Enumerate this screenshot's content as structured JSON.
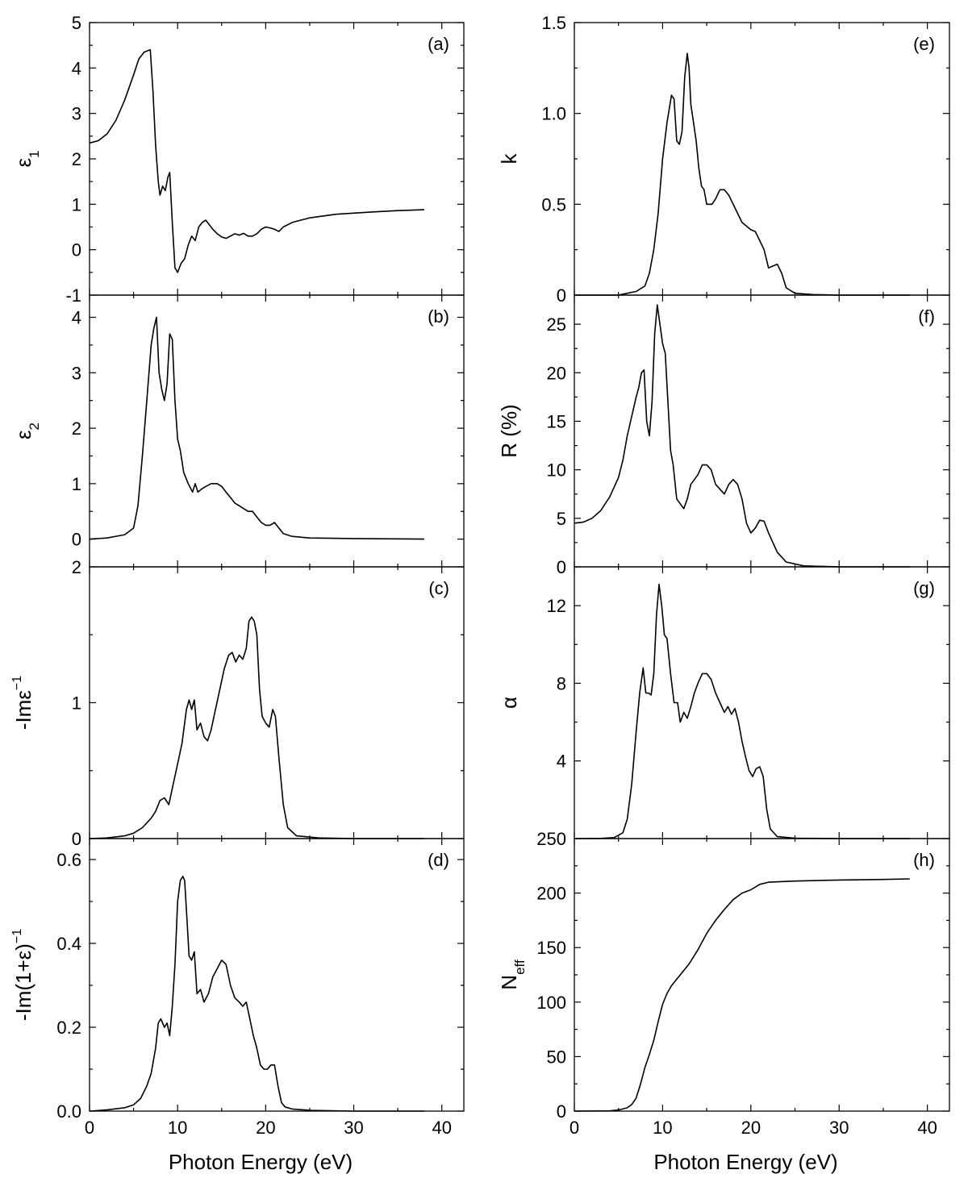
{
  "chart_data": [
    {
      "id": "a",
      "type": "line",
      "tag": "(a)",
      "ylabel_main": "ε",
      "ylabel_sub": "1",
      "ylabel_sup": "",
      "xlim": [
        0,
        42.5
      ],
      "ylim": [
        -1,
        5
      ],
      "yticks": [
        -1,
        0,
        1,
        2,
        3,
        4,
        5
      ],
      "yticklabels": [
        "-1",
        "0",
        "1",
        "2",
        "3",
        "4",
        "5"
      ],
      "xticks": [
        0,
        10,
        20,
        30,
        40
      ],
      "xticklabels": [],
      "xlabel": "",
      "series": [
        {
          "x": [
            0,
            1,
            2,
            3,
            4,
            5,
            5.6,
            6.2,
            6.6,
            6.9,
            7.2,
            7.5,
            7.8,
            8.0,
            8.3,
            8.6,
            8.9,
            9.1,
            9.4,
            9.7,
            10.0,
            10.4,
            10.8,
            11.2,
            11.6,
            12.0,
            12.4,
            12.8,
            13.2,
            13.6,
            14.0,
            14.5,
            15.0,
            15.5,
            16.0,
            16.5,
            17.0,
            17.5,
            18.0,
            18.5,
            19.0,
            19.5,
            20.0,
            20.5,
            21.0,
            21.5,
            22.0,
            23.0,
            25.0,
            28.0,
            32.0,
            35.0,
            38.0
          ],
          "y": [
            2.35,
            2.4,
            2.55,
            2.85,
            3.3,
            3.85,
            4.2,
            4.35,
            4.38,
            4.4,
            3.5,
            2.3,
            1.5,
            1.2,
            1.4,
            1.3,
            1.6,
            1.7,
            0.6,
            -0.4,
            -0.5,
            -0.3,
            -0.2,
            0.1,
            0.3,
            0.2,
            0.5,
            0.6,
            0.65,
            0.55,
            0.45,
            0.35,
            0.28,
            0.25,
            0.3,
            0.35,
            0.32,
            0.36,
            0.3,
            0.3,
            0.35,
            0.45,
            0.5,
            0.48,
            0.45,
            0.4,
            0.5,
            0.6,
            0.7,
            0.78,
            0.83,
            0.86,
            0.88
          ]
        }
      ]
    },
    {
      "id": "b",
      "type": "line",
      "tag": "(b)",
      "ylabel_main": "ε",
      "ylabel_sub": "2",
      "ylabel_sup": "",
      "xlim": [
        0,
        42.5
      ],
      "ylim": [
        -0.5,
        4.4
      ],
      "yticks": [
        0,
        1,
        2,
        3,
        4
      ],
      "yticklabels": [
        "0",
        "1",
        "2",
        "3",
        "4"
      ],
      "xticks": [
        0,
        10,
        20,
        30,
        40
      ],
      "xticklabels": [],
      "xlabel": "",
      "series": [
        {
          "x": [
            0,
            2,
            4,
            5,
            5.5,
            6.0,
            6.5,
            7.0,
            7.3,
            7.6,
            7.9,
            8.2,
            8.5,
            8.8,
            9.1,
            9.4,
            9.7,
            10.0,
            10.3,
            10.7,
            11.2,
            11.7,
            12.0,
            12.3,
            12.7,
            13.2,
            13.8,
            14.5,
            15.0,
            15.5,
            16.0,
            16.5,
            17.0,
            17.5,
            18.0,
            18.5,
            19.0,
            19.5,
            20.0,
            20.5,
            21.0,
            21.5,
            22.0,
            23.0,
            25.0,
            30.0,
            38.0
          ],
          "y": [
            0,
            0.02,
            0.08,
            0.2,
            0.6,
            1.5,
            2.5,
            3.5,
            3.8,
            4.0,
            3.0,
            2.7,
            2.5,
            2.8,
            3.7,
            3.6,
            2.5,
            1.8,
            1.6,
            1.2,
            1.0,
            0.85,
            1.0,
            0.85,
            0.9,
            0.95,
            1.0,
            1.0,
            0.95,
            0.85,
            0.75,
            0.65,
            0.6,
            0.55,
            0.5,
            0.5,
            0.4,
            0.3,
            0.25,
            0.25,
            0.3,
            0.2,
            0.1,
            0.05,
            0.02,
            0.01,
            0.0
          ]
        }
      ]
    },
    {
      "id": "c",
      "type": "line",
      "tag": "(c)",
      "ylabel_main": "-Imε",
      "ylabel_sub": "",
      "ylabel_sup": "−1",
      "xlim": [
        0,
        42.5
      ],
      "ylim": [
        0,
        2
      ],
      "yticks": [
        0,
        1,
        2
      ],
      "yticklabels": [
        "0",
        "1",
        "2"
      ],
      "xticks": [
        0,
        10,
        20,
        30,
        40
      ],
      "xticklabels": [],
      "xlabel": "",
      "series": [
        {
          "x": [
            0,
            2,
            4,
            5,
            6,
            7,
            7.5,
            8.0,
            8.5,
            9.0,
            9.5,
            10.0,
            10.5,
            11.0,
            11.3,
            11.6,
            11.9,
            12.2,
            12.6,
            13.0,
            13.4,
            13.8,
            14.3,
            14.8,
            15.3,
            15.8,
            16.2,
            16.6,
            17.0,
            17.4,
            17.8,
            18.1,
            18.4,
            18.7,
            19.0,
            19.3,
            19.6,
            20.0,
            20.4,
            20.8,
            21.1,
            21.5,
            22.0,
            22.5,
            23.5,
            26.0,
            30.0,
            38.0
          ],
          "y": [
            0,
            0.005,
            0.02,
            0.04,
            0.08,
            0.15,
            0.2,
            0.28,
            0.3,
            0.25,
            0.4,
            0.55,
            0.7,
            0.95,
            1.02,
            0.95,
            1.02,
            0.8,
            0.85,
            0.75,
            0.72,
            0.8,
            0.95,
            1.1,
            1.25,
            1.35,
            1.37,
            1.3,
            1.35,
            1.32,
            1.4,
            1.6,
            1.63,
            1.6,
            1.5,
            1.1,
            0.9,
            0.85,
            0.82,
            0.95,
            0.9,
            0.6,
            0.25,
            0.08,
            0.02,
            0.005,
            0.0,
            0.0
          ]
        }
      ]
    },
    {
      "id": "d",
      "type": "line",
      "tag": "(d)",
      "ylabel_main": "-Im(1+ε)",
      "ylabel_sub": "",
      "ylabel_sup": "−1",
      "xlim": [
        0,
        42.5
      ],
      "ylim": [
        0,
        0.65
      ],
      "yticks": [
        0,
        0.2,
        0.4,
        0.6
      ],
      "yticklabels": [
        "0.0",
        "0.2",
        "0.4",
        "0.6"
      ],
      "xticks": [
        0,
        10,
        20,
        30,
        40
      ],
      "xticklabels": [
        "0",
        "10",
        "20",
        "30",
        "40"
      ],
      "xlabel": "Photon Energy (eV)",
      "series": [
        {
          "x": [
            0,
            2,
            4,
            5,
            5.8,
            6.5,
            7.0,
            7.5,
            7.8,
            8.1,
            8.5,
            8.8,
            9.1,
            9.4,
            9.7,
            10.0,
            10.3,
            10.6,
            10.8,
            11.0,
            11.3,
            11.6,
            11.9,
            12.2,
            12.6,
            13.0,
            13.5,
            14.0,
            14.5,
            15.0,
            15.5,
            16.0,
            16.5,
            17.0,
            17.4,
            17.8,
            18.2,
            18.6,
            19.0,
            19.4,
            19.8,
            20.2,
            20.6,
            21.0,
            21.4,
            21.8,
            22.2,
            23.0,
            25.0,
            30.0,
            38.0
          ],
          "y": [
            0,
            0.003,
            0.008,
            0.015,
            0.03,
            0.06,
            0.09,
            0.15,
            0.21,
            0.22,
            0.2,
            0.21,
            0.18,
            0.25,
            0.35,
            0.5,
            0.55,
            0.56,
            0.55,
            0.48,
            0.37,
            0.36,
            0.38,
            0.28,
            0.29,
            0.26,
            0.28,
            0.32,
            0.34,
            0.36,
            0.35,
            0.3,
            0.27,
            0.26,
            0.25,
            0.26,
            0.22,
            0.18,
            0.15,
            0.11,
            0.1,
            0.1,
            0.11,
            0.11,
            0.06,
            0.02,
            0.01,
            0.005,
            0.002,
            0.0,
            0.0
          ]
        }
      ]
    },
    {
      "id": "e",
      "type": "line",
      "tag": "(e)",
      "ylabel_main": "k",
      "ylabel_sub": "",
      "ylabel_sup": "",
      "xlim": [
        0,
        42.5
      ],
      "ylim": [
        0,
        1.5
      ],
      "yticks": [
        0,
        0.5,
        1.0,
        1.5
      ],
      "yticklabels": [
        "0",
        "0.5",
        "1.0",
        "1.5"
      ],
      "xticks": [
        0,
        10,
        20,
        30,
        40
      ],
      "xticklabels": [],
      "xlabel": "",
      "series": [
        {
          "x": [
            0,
            3,
            5,
            6,
            7,
            8,
            8.5,
            9,
            9.5,
            10,
            10.5,
            11,
            11.3,
            11.6,
            11.9,
            12.2,
            12.5,
            12.8,
            13.0,
            13.2,
            13.5,
            13.8,
            14.1,
            14.4,
            14.7,
            15.0,
            15.3,
            15.6,
            16.0,
            16.5,
            17.0,
            17.5,
            18.0,
            18.5,
            19.0,
            19.5,
            20.0,
            20.5,
            21.0,
            21.5,
            22.0,
            22.5,
            23.0,
            23.5,
            24.0,
            25.0,
            27.0,
            30.0,
            38.0
          ],
          "y": [
            0,
            0,
            0.0,
            0.01,
            0.02,
            0.05,
            0.12,
            0.25,
            0.45,
            0.75,
            0.95,
            1.1,
            1.08,
            0.85,
            0.83,
            0.9,
            1.2,
            1.33,
            1.25,
            1.05,
            0.95,
            0.85,
            0.7,
            0.6,
            0.58,
            0.5,
            0.5,
            0.5,
            0.53,
            0.58,
            0.58,
            0.55,
            0.5,
            0.45,
            0.4,
            0.38,
            0.36,
            0.35,
            0.3,
            0.25,
            0.15,
            0.16,
            0.17,
            0.12,
            0.04,
            0.01,
            0.003,
            0.0,
            0.0
          ]
        }
      ]
    },
    {
      "id": "f",
      "type": "line",
      "tag": "(f)",
      "ylabel_main": "R (%)",
      "ylabel_sub": "",
      "ylabel_sup": "",
      "xlim": [
        0,
        42.5
      ],
      "ylim": [
        0,
        28
      ],
      "yticks": [
        0,
        5,
        10,
        15,
        20,
        25
      ],
      "yticklabels": [
        "0",
        "5",
        "10",
        "15",
        "20",
        "25"
      ],
      "xticks": [
        0,
        10,
        20,
        30,
        40
      ],
      "xticklabels": [],
      "xlabel": "",
      "series": [
        {
          "x": [
            0,
            1,
            2,
            3,
            4,
            5,
            5.5,
            6,
            6.5,
            7,
            7.3,
            7.6,
            7.9,
            8.2,
            8.5,
            8.8,
            9.1,
            9.4,
            9.7,
            10.0,
            10.3,
            10.6,
            10.9,
            11.2,
            11.6,
            12.0,
            12.4,
            12.8,
            13.2,
            13.6,
            14.0,
            14.5,
            15.0,
            15.5,
            16.0,
            16.5,
            17.0,
            17.5,
            18.0,
            18.5,
            19.0,
            19.5,
            20.0,
            20.5,
            21.0,
            21.5,
            22.0,
            23.0,
            24.0,
            26.0,
            30.0,
            38.0
          ],
          "y": [
            4.5,
            4.6,
            5.0,
            5.8,
            7.2,
            9.2,
            11.0,
            13.5,
            15.5,
            17.5,
            18.5,
            20.0,
            20.3,
            15.0,
            13.5,
            17.0,
            24.0,
            27.0,
            25.0,
            23.0,
            22.0,
            17.0,
            12.0,
            10.5,
            7.0,
            6.5,
            6.0,
            7.0,
            8.5,
            9.0,
            9.5,
            10.5,
            10.5,
            10.0,
            8.5,
            8.0,
            7.5,
            8.5,
            9.0,
            8.5,
            7.0,
            4.5,
            3.5,
            4.0,
            4.8,
            4.7,
            3.5,
            1.5,
            0.5,
            0.1,
            0.0,
            0.0
          ]
        }
      ]
    },
    {
      "id": "g",
      "type": "line",
      "tag": "(g)",
      "ylabel_main": "α",
      "ylabel_sub": "",
      "ylabel_sup": "",
      "xlim": [
        0,
        42.5
      ],
      "ylim": [
        0,
        14
      ],
      "yticks": [
        4,
        8,
        12
      ],
      "yticklabels": [
        "4",
        "8",
        "12"
      ],
      "xticks": [
        0,
        10,
        20,
        30,
        40
      ],
      "xticklabels": [],
      "xlabel": "",
      "series": [
        {
          "x": [
            0,
            3,
            4.5,
            5.5,
            6.0,
            6.5,
            7.0,
            7.4,
            7.8,
            8.1,
            8.4,
            8.7,
            9.0,
            9.3,
            9.6,
            9.9,
            10.2,
            10.5,
            10.9,
            11.3,
            11.7,
            12.0,
            12.4,
            12.8,
            13.2,
            13.6,
            14.0,
            14.5,
            15.0,
            15.5,
            16.0,
            16.5,
            17.0,
            17.4,
            17.8,
            18.2,
            18.6,
            19.0,
            19.4,
            19.8,
            20.2,
            20.6,
            21.0,
            21.4,
            21.8,
            22.2,
            23.0,
            25.0,
            30.0,
            38.0
          ],
          "y": [
            0,
            0.01,
            0.05,
            0.3,
            1.0,
            2.8,
            5.5,
            7.5,
            8.8,
            7.5,
            7.5,
            7.4,
            8.5,
            11.5,
            13.1,
            12.0,
            10.5,
            10.3,
            8.5,
            7.0,
            7.0,
            6.0,
            6.5,
            6.2,
            6.8,
            7.5,
            8.0,
            8.5,
            8.5,
            8.2,
            7.5,
            7.0,
            6.5,
            6.8,
            6.4,
            6.7,
            6.0,
            5.0,
            4.2,
            3.5,
            3.2,
            3.6,
            3.7,
            3.2,
            1.5,
            0.5,
            0.1,
            0.02,
            0.0,
            0.0
          ]
        }
      ]
    },
    {
      "id": "h",
      "type": "line",
      "tag": "(h)",
      "ylabel_main": "N",
      "ylabel_sub": "eff",
      "ylabel_sup": "",
      "xlim": [
        0,
        42.5
      ],
      "ylim": [
        0,
        250
      ],
      "yticks": [
        0,
        50,
        100,
        150,
        200,
        250
      ],
      "yticklabels": [
        "0",
        "50",
        "100",
        "150",
        "200",
        "250"
      ],
      "xticks": [
        0,
        10,
        20,
        30,
        40
      ],
      "xticklabels": [
        "0",
        "10",
        "20",
        "30",
        "40"
      ],
      "xlabel": "Photon Energy (eV)",
      "series": [
        {
          "x": [
            0,
            4,
            5,
            6,
            6.5,
            7,
            7.5,
            8,
            8.5,
            9,
            9.5,
            10,
            10.5,
            11,
            12,
            13,
            14,
            15,
            16,
            17,
            18,
            19,
            20,
            21,
            22,
            25,
            30,
            35,
            38
          ],
          "y": [
            0,
            0.2,
            1,
            3,
            6,
            12,
            25,
            40,
            52,
            65,
            82,
            98,
            108,
            115,
            125,
            135,
            148,
            163,
            175,
            185,
            194,
            200,
            203,
            208,
            210,
            211,
            212,
            212.5,
            213
          ]
        }
      ]
    }
  ]
}
